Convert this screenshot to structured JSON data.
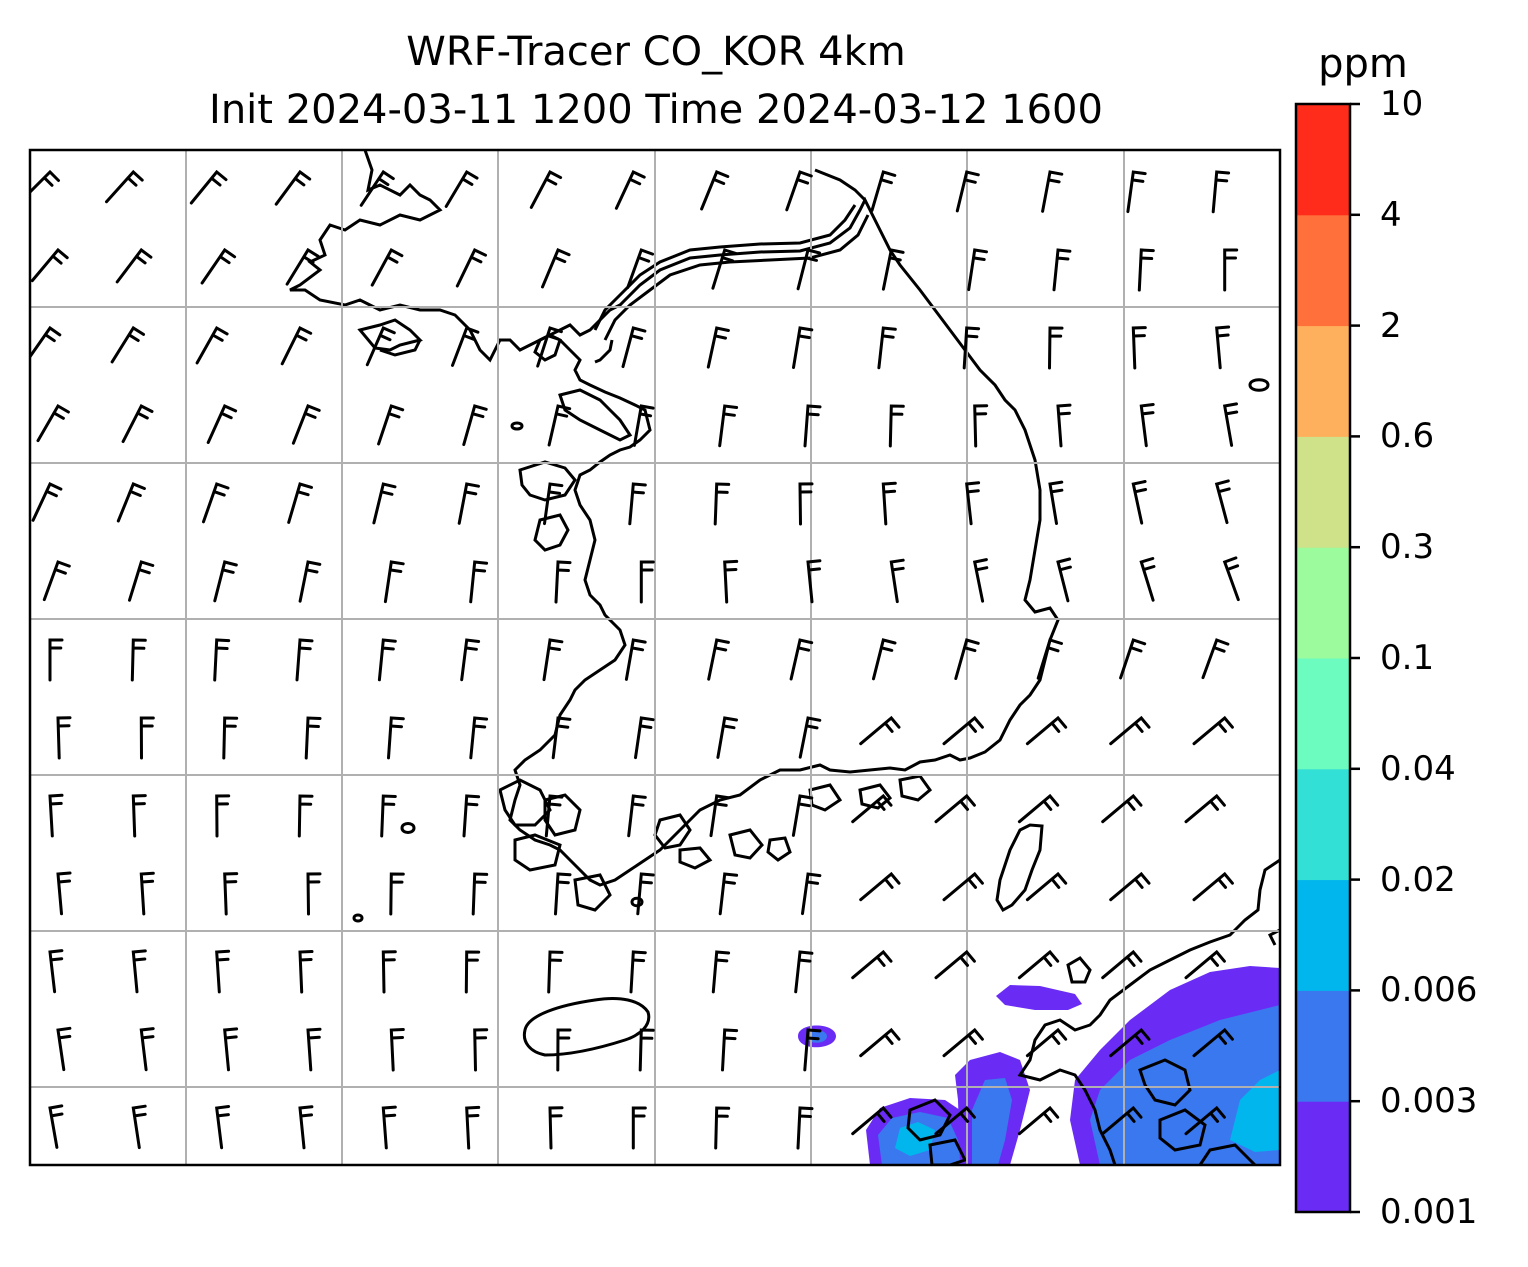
{
  "title": {
    "line1": "WRF-Tracer CO_KOR 4km",
    "line2": "Init 2024-03-11 1200 Time 2024-03-12 1600"
  },
  "colorbar": {
    "unit": "ppm",
    "levels": [
      "0.001",
      "0.003",
      "0.006",
      "0.02",
      "0.04",
      "0.1",
      "0.3",
      "0.6",
      "2",
      "4",
      "10"
    ],
    "colors": [
      "#6a2cf5",
      "#3a78f0",
      "#00b6ec",
      "#33e0d5",
      "#6cfcc0",
      "#9cfb9c",
      "#d0e289",
      "#ffb05d",
      "#ff703a",
      "#ff2c1c"
    ]
  },
  "map": {
    "gridlines": true,
    "features": [
      "coastline",
      "wind-barbs",
      "co-concentration-contours"
    ],
    "plume_colors": {
      "low": "#6a2cf5",
      "mid": "#3a78f0",
      "high": "#00b6ec"
    }
  }
}
